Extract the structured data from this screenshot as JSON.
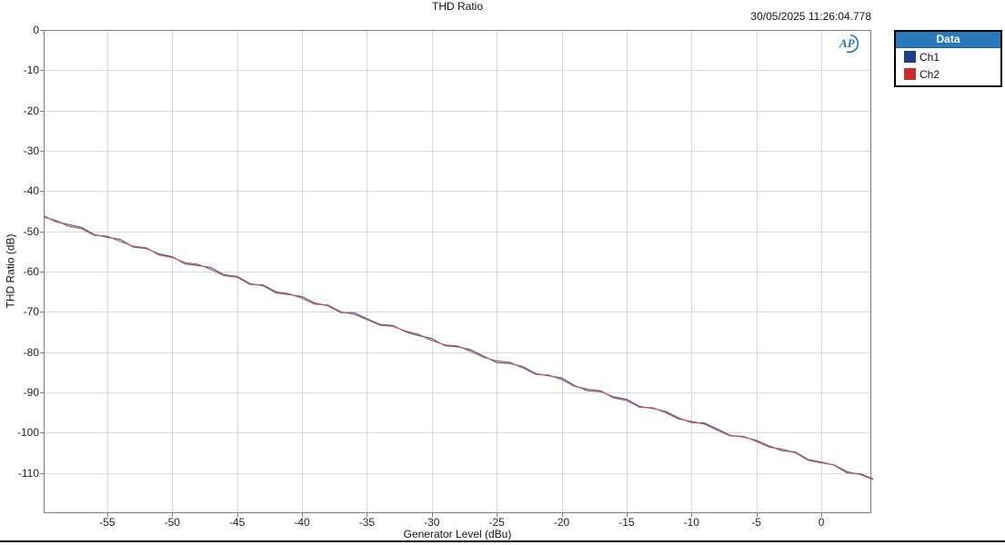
{
  "header": {
    "title": "THD Ratio",
    "timestamp": "30/05/2025 11:26:04.778"
  },
  "logo": {
    "text": "AP",
    "color": "#1c72b8"
  },
  "legend": {
    "header": "Data",
    "items": [
      {
        "label": "Ch1",
        "color": "#1f3d8a"
      },
      {
        "label": "Ch2",
        "color": "#c92c2c"
      }
    ]
  },
  "chart_data": {
    "type": "line",
    "title": "THD Ratio",
    "xlabel": "Generator Level (dBu)",
    "ylabel": "THD Ratio (dB)",
    "xlim": [
      -59.9,
      3.85
    ],
    "ylim": [
      -120,
      0
    ],
    "xticks": [
      -55,
      -50,
      -45,
      -40,
      -35,
      -30,
      -25,
      -20,
      -15,
      -10,
      -5,
      0
    ],
    "yticks": [
      0,
      -10,
      -20,
      -30,
      -40,
      -50,
      -60,
      -70,
      -80,
      -90,
      -100,
      -110
    ],
    "grid": true,
    "grid_color": "#d9d9d9",
    "border_color": "#808080",
    "legend_position": "outside-top-right",
    "x": [
      -59.9,
      -59,
      -58,
      -57,
      -56,
      -55,
      -54,
      -53,
      -52,
      -51,
      -50,
      -49,
      -48,
      -47,
      -46,
      -45,
      -44,
      -43,
      -42,
      -41,
      -40,
      -39,
      -38,
      -37,
      -36,
      -35,
      -34,
      -33,
      -32,
      -31,
      -30,
      -29,
      -28,
      -27,
      -26,
      -25,
      -24,
      -23,
      -22,
      -21,
      -20,
      -19,
      -18,
      -17,
      -16,
      -15,
      -14,
      -13,
      -12,
      -11,
      -10,
      -9,
      -8,
      -7,
      -6,
      -5,
      -4,
      -3,
      -2,
      -1,
      0,
      1,
      2,
      3,
      4
    ],
    "series": [
      {
        "name": "Ch1",
        "color": "#44699e",
        "legend_color": "#1f3d8a",
        "values": [
          -46.1,
          -47.6,
          -48.3,
          -49.0,
          -50.8,
          -51.5,
          -52.0,
          -53.9,
          -54.3,
          -55.6,
          -56.3,
          -58.1,
          -58.5,
          -59.0,
          -60.8,
          -61.2,
          -63.0,
          -63.5,
          -65.3,
          -65.7,
          -66.2,
          -67.8,
          -68.5,
          -70.2,
          -70.2,
          -71.7,
          -73.1,
          -73.4,
          -75.0,
          -75.9,
          -76.6,
          -78.4,
          -78.7,
          -79.4,
          -81.0,
          -82.6,
          -82.8,
          -83.6,
          -85.3,
          -85.9,
          -86.4,
          -88.3,
          -89.6,
          -89.8,
          -91.1,
          -91.7,
          -93.5,
          -94.0,
          -94.7,
          -96.3,
          -97.5,
          -97.6,
          -99.1,
          -100.7,
          -101.1,
          -101.9,
          -103.3,
          -104.5,
          -104.8,
          -106.7,
          -107.3,
          -108.1,
          -110.0,
          -110.2,
          -111.5
        ]
      },
      {
        "name": "Ch2",
        "color": "#c4545a",
        "legend_color": "#c92c2c",
        "values": [
          -46.5,
          -47.2,
          -48.7,
          -49.3,
          -51.0,
          -51.2,
          -52.5,
          -53.7,
          -54.1,
          -55.9,
          -56.5,
          -57.8,
          -58.2,
          -59.5,
          -61.0,
          -61.4,
          -63.2,
          -63.3,
          -65.0,
          -65.5,
          -66.6,
          -68.1,
          -68.3,
          -70.0,
          -70.6,
          -71.9,
          -73.3,
          -73.6,
          -74.8,
          -75.6,
          -77.1,
          -78.2,
          -78.5,
          -79.8,
          -81.3,
          -82.2,
          -82.5,
          -83.9,
          -85.5,
          -85.7,
          -86.8,
          -88.5,
          -89.2,
          -89.6,
          -91.4,
          -92.0,
          -93.7,
          -93.8,
          -95.0,
          -96.6,
          -97.2,
          -97.9,
          -99.4,
          -100.8,
          -100.9,
          -102.2,
          -103.6,
          -104.1,
          -105.0,
          -106.9,
          -107.5,
          -108.0,
          -109.7,
          -110.4,
          -111.7
        ]
      }
    ]
  }
}
